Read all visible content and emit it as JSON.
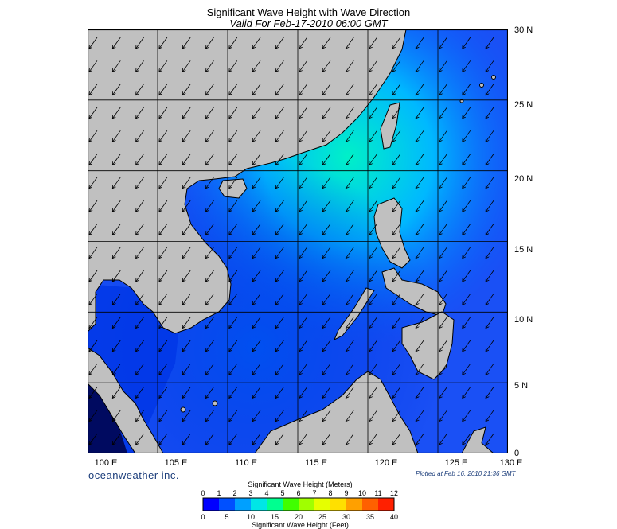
{
  "header": {
    "title": "Significant Wave Height with Wave Direction",
    "subtitle": "Valid For Feb-17-2010 06:00 GMT"
  },
  "map": {
    "lon_range": [
      100,
      130
    ],
    "lat_range": [
      0,
      30
    ],
    "grid_step_deg": 5,
    "lon_labels": [
      "100 E",
      "105 E",
      "110 E",
      "115 E",
      "120 E",
      "125 E",
      "130 E"
    ],
    "lat_labels": [
      "30 N",
      "25 N",
      "20 N",
      "15 N",
      "10 N",
      "5 N",
      "0"
    ],
    "land_color": "#c0c0c0",
    "wave_direction": "arrows pointing toward the southwest across the basin"
  },
  "footer": {
    "brand": "oceanweather inc.",
    "plotted": "Plotted at Feb 16, 2010 21:36 GMT"
  },
  "legend": {
    "title_meters": "Significant Wave Height (Meters)",
    "title_feet": "Significant Wave Height (Feet)",
    "meter_ticks": [
      "0",
      "1",
      "2",
      "3",
      "4",
      "5",
      "6",
      "7",
      "8",
      "9",
      "10",
      "11",
      "12"
    ],
    "feet_ticks": [
      "0",
      "5",
      "10",
      "15",
      "20",
      "25",
      "30",
      "35",
      "40"
    ],
    "colors": [
      "#0000ff",
      "#0050ff",
      "#00a0ff",
      "#00e6e6",
      "#00ff90",
      "#40ff00",
      "#a0ff00",
      "#e6ff00",
      "#ffe000",
      "#ffa000",
      "#ff6000",
      "#ff2000"
    ]
  }
}
